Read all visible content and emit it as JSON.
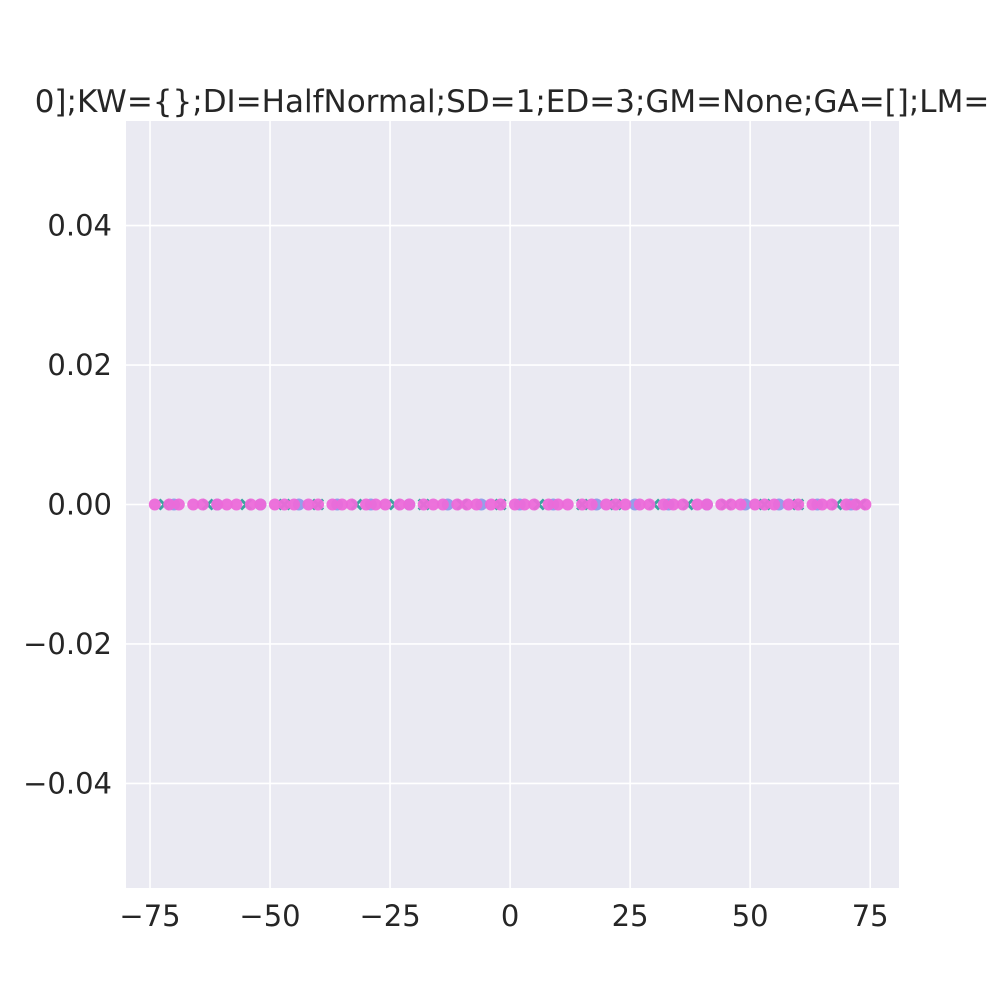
{
  "chart_data": {
    "type": "scatter",
    "title": "0];KW={};DI=HalfNormal;SD=1;ED=3;GM=None;GA=[];LM=",
    "xlabel": "",
    "ylabel": "",
    "xlim": [
      -80,
      81
    ],
    "ylim": [
      -0.055,
      0.055
    ],
    "grid": true,
    "x_ticks": [
      -75,
      -50,
      -25,
      0,
      25,
      50,
      75
    ],
    "x_tick_labels": [
      "−75",
      "−50",
      "−25",
      "0",
      "25",
      "50",
      "75"
    ],
    "y_ticks": [
      0.04,
      0.02,
      0.0,
      -0.02,
      -0.04
    ],
    "y_tick_labels": [
      "0.04",
      "0.02",
      "0.00",
      "−0.02",
      "−0.04"
    ],
    "series": [
      {
        "color": "#3ba3a0",
        "marker": "x",
        "x": [
          -72,
          -63,
          -55,
          -47,
          -40,
          -32,
          -24,
          -18,
          -10,
          -2,
          6,
          15,
          22,
          30,
          37,
          45,
          53,
          60,
          68,
          73
        ],
        "y": [
          0,
          0,
          0,
          0,
          0,
          0,
          0,
          0,
          0,
          0,
          0,
          0,
          0,
          0,
          0,
          0,
          0,
          0,
          0,
          0
        ]
      },
      {
        "color": "#8f9be8",
        "marker": "o",
        "x": [
          -70,
          -61,
          -52,
          -44,
          -36,
          -29,
          -21,
          -13,
          -6,
          2,
          9,
          18,
          26,
          33,
          41,
          49,
          56,
          64,
          71
        ],
        "y": [
          0,
          0,
          0,
          0,
          0,
          0,
          0,
          0,
          0,
          0,
          0,
          0,
          0,
          0,
          0,
          0,
          0,
          0,
          0
        ]
      },
      {
        "color": "#ec6ad9",
        "marker": "o",
        "x": [
          -74,
          -71,
          -69,
          -66,
          -64,
          -61,
          -59,
          -57,
          -54,
          -52,
          -49,
          -47,
          -45,
          -42,
          -40,
          -37,
          -35,
          -33,
          -30,
          -28,
          -26,
          -23,
          -21,
          -18,
          -16,
          -14,
          -11,
          -9,
          -7,
          -4,
          -2,
          1,
          3,
          5,
          8,
          10,
          12,
          15,
          17,
          20,
          22,
          24,
          27,
          29,
          32,
          34,
          36,
          39,
          41,
          44,
          46,
          48,
          51,
          53,
          55,
          58,
          60,
          63,
          65,
          67,
          70,
          72,
          74
        ],
        "y": [
          0,
          0,
          0,
          0,
          0,
          0,
          0,
          0,
          0,
          0,
          0,
          0,
          0,
          0,
          0,
          0,
          0,
          0,
          0,
          0,
          0,
          0,
          0,
          0,
          0,
          0,
          0,
          0,
          0,
          0,
          0,
          0,
          0,
          0,
          0,
          0,
          0,
          0,
          0,
          0,
          0,
          0,
          0,
          0,
          0,
          0,
          0,
          0,
          0,
          0,
          0,
          0,
          0,
          0,
          0,
          0,
          0,
          0,
          0,
          0,
          0,
          0,
          0
        ]
      }
    ]
  }
}
